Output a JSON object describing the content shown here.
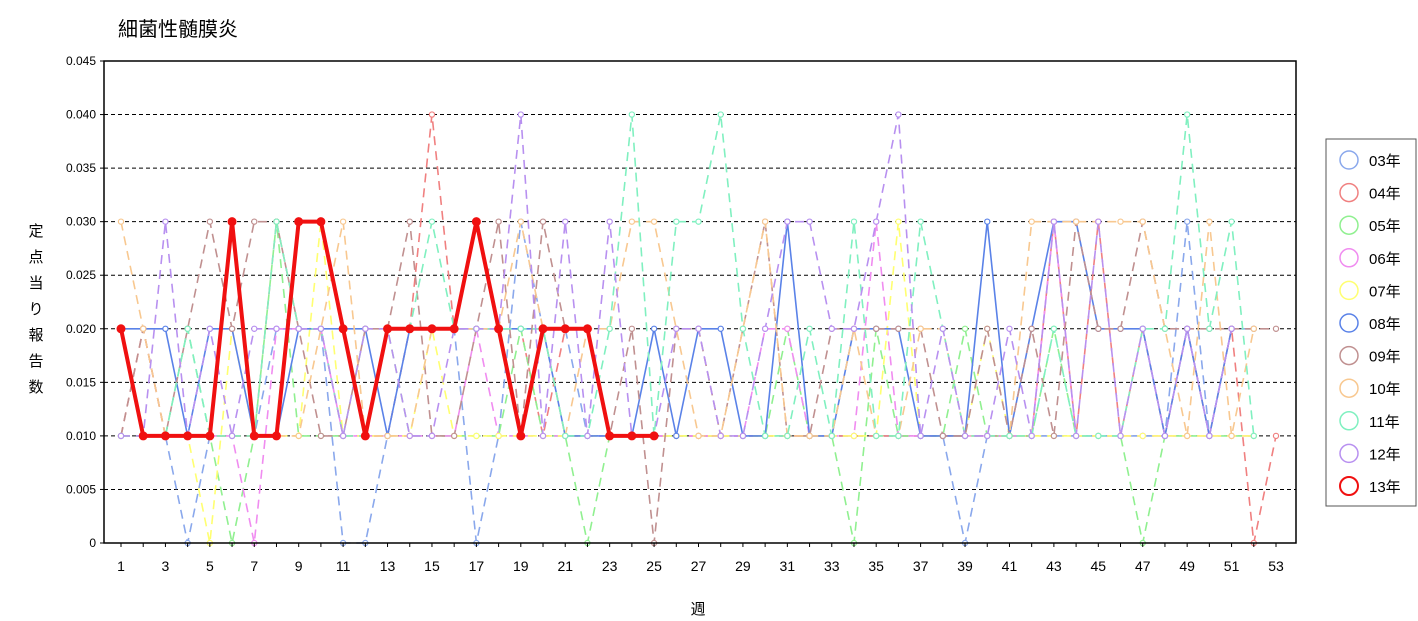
{
  "chart_data": {
    "type": "line",
    "title": "細菌性髄膜炎",
    "xlabel": "週",
    "ylabel": "定点当り報告数",
    "ylim": [
      0,
      0.045
    ],
    "yticks": [
      "0",
      "0.005",
      "0.010",
      "0.015",
      "0.020",
      "0.025",
      "0.030",
      "0.035",
      "0.040",
      "0.045"
    ],
    "x": [
      1,
      2,
      3,
      4,
      5,
      6,
      7,
      8,
      9,
      10,
      11,
      12,
      13,
      14,
      15,
      16,
      17,
      18,
      19,
      20,
      21,
      22,
      23,
      24,
      25,
      26,
      27,
      28,
      29,
      30,
      31,
      32,
      33,
      34,
      35,
      36,
      37,
      38,
      39,
      40,
      41,
      42,
      43,
      44,
      45,
      46,
      47,
      48,
      49,
      50,
      51,
      52,
      53
    ],
    "xticks": [
      "1",
      "3",
      "5",
      "7",
      "9",
      "11",
      "13",
      "15",
      "17",
      "19",
      "21",
      "23",
      "25",
      "27",
      "29",
      "31",
      "33",
      "35",
      "37",
      "39",
      "41",
      "43",
      "45",
      "47",
      "49",
      "51",
      "53"
    ],
    "grid": "horizontal dashed",
    "legend_position": "right",
    "series": [
      {
        "name": "03年",
        "color": "#8aa8ec",
        "style": "dashed",
        "values": [
          0.01,
          0.01,
          0.01,
          0,
          0.01,
          0.01,
          0.01,
          0.02,
          0.02,
          0.02,
          0,
          0,
          0.01,
          0.02,
          0.02,
          0.02,
          0,
          0.01,
          0.03,
          0.02,
          0.02,
          0.01,
          0.01,
          0.01,
          0.01,
          0.01,
          0.01,
          0.01,
          0.01,
          0.01,
          0.01,
          0.01,
          0.01,
          0.01,
          0.01,
          0.01,
          0.01,
          0.01,
          0,
          0.01,
          0.01,
          0.01,
          0.01,
          0.01,
          0.01,
          0.01,
          0.01,
          0.01,
          0.03,
          0.01,
          0.02,
          0.02,
          null
        ]
      },
      {
        "name": "04年",
        "color": "#f08080",
        "style": "dashed",
        "values": [
          0.01,
          0.02,
          0.01,
          0.01,
          0.01,
          0.01,
          0.01,
          0.03,
          0.02,
          0.02,
          0.01,
          0.01,
          0.01,
          0.02,
          0.04,
          0.02,
          0.02,
          0.02,
          0.02,
          0.01,
          0.02,
          0.02,
          0.01,
          0.01,
          0.01,
          0.01,
          0.01,
          0.01,
          0.01,
          0.01,
          0.01,
          0.01,
          0.01,
          0.01,
          0.01,
          0.01,
          0.01,
          0.01,
          0.01,
          0.01,
          0.01,
          0.01,
          0.03,
          0.01,
          0.03,
          0.01,
          0.02,
          0.01,
          0.02,
          0.01,
          0.02,
          0,
          0.01
        ]
      },
      {
        "name": "05年",
        "color": "#90f090",
        "style": "dashed",
        "values": [
          0.01,
          0.01,
          0.01,
          0.02,
          0.01,
          0,
          0.01,
          0.03,
          0.01,
          0.01,
          0.01,
          0.02,
          0.02,
          0.01,
          0.01,
          0.01,
          0.01,
          0.01,
          0.02,
          0.01,
          0.01,
          0,
          0.01,
          0.01,
          0.01,
          0.01,
          0.01,
          0.01,
          0.01,
          0.01,
          0.02,
          0.01,
          0.01,
          0,
          0.02,
          0.01,
          0.01,
          0.01,
          0.02,
          0.01,
          0.01,
          0.01,
          0.02,
          0.01,
          0.01,
          0.01,
          0,
          0.01,
          0.01,
          0.01,
          0.01,
          0.01,
          null
        ]
      },
      {
        "name": "06年",
        "color": "#f08cf0",
        "style": "dashed",
        "values": [
          0.01,
          0.01,
          0.01,
          0.01,
          0.01,
          0.01,
          0,
          0.02,
          0.02,
          0.02,
          0.01,
          0.01,
          0.01,
          0.01,
          0.01,
          0.01,
          0.02,
          0.01,
          0.01,
          0.01,
          0.01,
          0.01,
          0.01,
          0.01,
          0.01,
          0.01,
          0.01,
          0.01,
          0.01,
          0.02,
          0.02,
          0.01,
          0.01,
          0.01,
          0.03,
          0.01,
          0.01,
          0.01,
          0.01,
          0.01,
          0.01,
          0.01,
          0.03,
          0.01,
          0.01,
          0.01,
          0.01,
          0.01,
          0.01,
          0.01,
          0.01,
          0.01,
          null
        ]
      },
      {
        "name": "07年",
        "color": "#ffff70",
        "style": "dashed",
        "values": [
          0.01,
          0.01,
          0.01,
          0.01,
          0,
          0.02,
          0.01,
          0.01,
          0.01,
          0.03,
          0.01,
          0.01,
          0.01,
          0.01,
          0.02,
          0.01,
          0.01,
          0.01,
          0.01,
          0.01,
          0.01,
          0.01,
          0.01,
          0.01,
          0.01,
          0.01,
          0.01,
          0.01,
          0.01,
          0.01,
          0.01,
          0.01,
          0.01,
          0.01,
          0.01,
          0.03,
          0.01,
          0.01,
          0.01,
          0.02,
          0.01,
          0.01,
          0.01,
          0.01,
          0.01,
          0.01,
          0.01,
          0.01,
          0.01,
          0.01,
          0.01,
          0.01,
          null
        ]
      },
      {
        "name": "08年",
        "color": "#5a82e8",
        "style": "solid",
        "values": [
          0.02,
          0.02,
          0.02,
          0.01,
          0.02,
          0.02,
          0.01,
          0.01,
          0.02,
          0.02,
          0.02,
          0.02,
          0.01,
          0.02,
          0.02,
          0.02,
          0.02,
          0.02,
          0.02,
          0.02,
          0.01,
          0.01,
          0.01,
          0.01,
          0.02,
          0.01,
          0.02,
          0.02,
          0.01,
          0.01,
          0.03,
          0.01,
          0.01,
          0.02,
          0.02,
          0.02,
          0.01,
          0.01,
          0.01,
          0.03,
          0.01,
          0.02,
          0.03,
          0.03,
          0.02,
          0.02,
          0.02,
          0.01,
          0.02,
          0.01,
          0.02,
          null,
          null
        ]
      },
      {
        "name": "09年",
        "color": "#c09090",
        "style": "dashed",
        "values": [
          0.01,
          0.02,
          0.01,
          0.02,
          0.03,
          0.02,
          0.03,
          0.03,
          0.02,
          0.01,
          0.01,
          0.02,
          0.02,
          0.03,
          0.01,
          0.01,
          0.02,
          0.03,
          0.01,
          0.03,
          0.02,
          0.02,
          0.01,
          0.02,
          0,
          0.02,
          0.02,
          0.01,
          0.02,
          0.03,
          0.01,
          0.01,
          0.02,
          0.02,
          0.02,
          0.02,
          0.02,
          0.01,
          0.01,
          0.02,
          0.01,
          0.02,
          0.01,
          0.03,
          0.02,
          0.02,
          0.03,
          0.02,
          0.02,
          0.02,
          0.02,
          0.02,
          0.02
        ]
      },
      {
        "name": "10年",
        "color": "#f8c890",
        "style": "dashed",
        "values": [
          0.03,
          0.02,
          0.01,
          0.01,
          0.01,
          0.01,
          0.01,
          0.01,
          0.01,
          0.02,
          0.03,
          0.01,
          0.01,
          0.01,
          0.02,
          0.02,
          0.02,
          0.02,
          0.03,
          0.02,
          0.01,
          0.02,
          0.02,
          0.03,
          0.03,
          0.02,
          0.01,
          0.01,
          0.02,
          0.03,
          0.01,
          0.01,
          0.01,
          0.02,
          0.01,
          0.01,
          0.02,
          0.02,
          0.01,
          0.01,
          0.01,
          0.03,
          0.03,
          0.03,
          0.03,
          0.03,
          0.03,
          0.02,
          0.01,
          0.03,
          0.01,
          0.02,
          null
        ]
      },
      {
        "name": "11年",
        "color": "#80f0c0",
        "style": "dashed",
        "values": [
          0.01,
          0.01,
          0.01,
          0.02,
          0.01,
          0.01,
          0.01,
          0.03,
          0.02,
          0.02,
          0.01,
          0.01,
          0.02,
          0.02,
          0.03,
          0.02,
          0.02,
          0.02,
          0.02,
          0.02,
          0.01,
          0.01,
          0.02,
          0.04,
          0.01,
          0.03,
          0.03,
          0.04,
          0.02,
          0.01,
          0.01,
          0.02,
          0.01,
          0.03,
          0.01,
          0.01,
          0.03,
          0.02,
          0.01,
          0.01,
          0.01,
          0.01,
          0.02,
          0.01,
          0.01,
          0.01,
          0.02,
          0.02,
          0.04,
          0.02,
          0.03,
          0.01,
          null
        ]
      },
      {
        "name": "12年",
        "color": "#b890f0",
        "style": "dashed",
        "values": [
          0.01,
          0.01,
          0.03,
          0.01,
          0.02,
          0.01,
          0.02,
          0.02,
          0.02,
          0.02,
          0.01,
          0.02,
          0.02,
          0.01,
          0.01,
          0.02,
          0.02,
          0.02,
          0.04,
          0.01,
          0.03,
          0.01,
          0.03,
          0.01,
          0.01,
          0.02,
          0.02,
          0.01,
          0.01,
          0.02,
          0.03,
          0.03,
          0.02,
          0.02,
          0.03,
          0.04,
          0.01,
          0.02,
          0.01,
          0.01,
          0.02,
          0.01,
          0.03,
          0.01,
          0.03,
          0.01,
          0.02,
          0.01,
          0.02,
          0.01,
          0.02,
          null,
          null
        ]
      },
      {
        "name": "13年",
        "color": "#f01010",
        "style": "bold",
        "values": [
          0.02,
          0.01,
          0.01,
          0.01,
          0.01,
          0.03,
          0.01,
          0.01,
          0.03,
          0.03,
          0.02,
          0.01,
          0.02,
          0.02,
          0.02,
          0.02,
          0.03,
          0.02,
          0.01,
          0.02,
          0.02,
          0.02,
          0.01,
          0.01,
          0.01,
          null,
          null,
          null,
          null,
          null,
          null,
          null,
          null,
          null,
          null,
          null,
          null,
          null,
          null,
          null,
          null,
          null,
          null,
          null,
          null,
          null,
          null,
          null,
          null,
          null,
          null,
          null,
          null
        ]
      }
    ]
  }
}
